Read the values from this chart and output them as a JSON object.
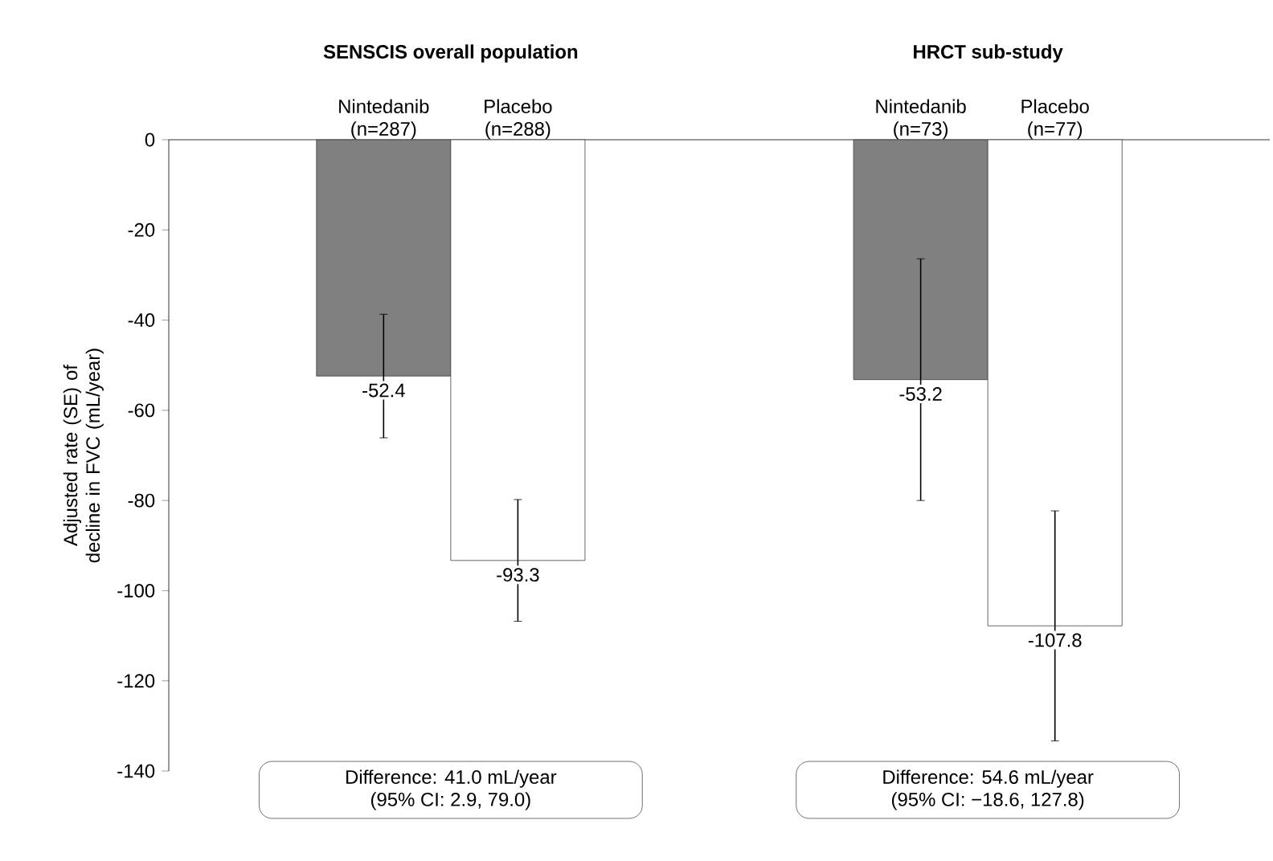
{
  "chart_data": {
    "type": "bar",
    "categories": [
      "Nintedanib (n=287)",
      "Placebo (n=288)",
      null,
      null,
      "Nintedanib (n=73)",
      "Placebo (n=77)"
    ],
    "values": [
      -52.4,
      -93.3,
      null,
      null,
      -53.2,
      -107.8
    ],
    "errors": [
      13.7,
      13.5,
      null,
      null,
      26.8,
      25.5
    ],
    "colors": [
      "#808080",
      "#ffffff",
      null,
      null,
      "#808080",
      "#ffffff"
    ],
    "ylabel": "Adjusted rate (SE) of decline in FVC (mL/year)",
    "ylim": [
      -140,
      0
    ],
    "yticks": [
      0,
      -20,
      -40,
      -60,
      -80,
      -100,
      -120,
      -140
    ],
    "data_labels": true,
    "annotations": [
      "SENSCIS overall population",
      "HRCT sub-study",
      "Difference: 41.0 mL/year",
      "(95% CI: 2.9, 79.0)",
      "Difference: 54.6 mL/year",
      "(95% CI: −18.6, 127.8)"
    ]
  }
}
